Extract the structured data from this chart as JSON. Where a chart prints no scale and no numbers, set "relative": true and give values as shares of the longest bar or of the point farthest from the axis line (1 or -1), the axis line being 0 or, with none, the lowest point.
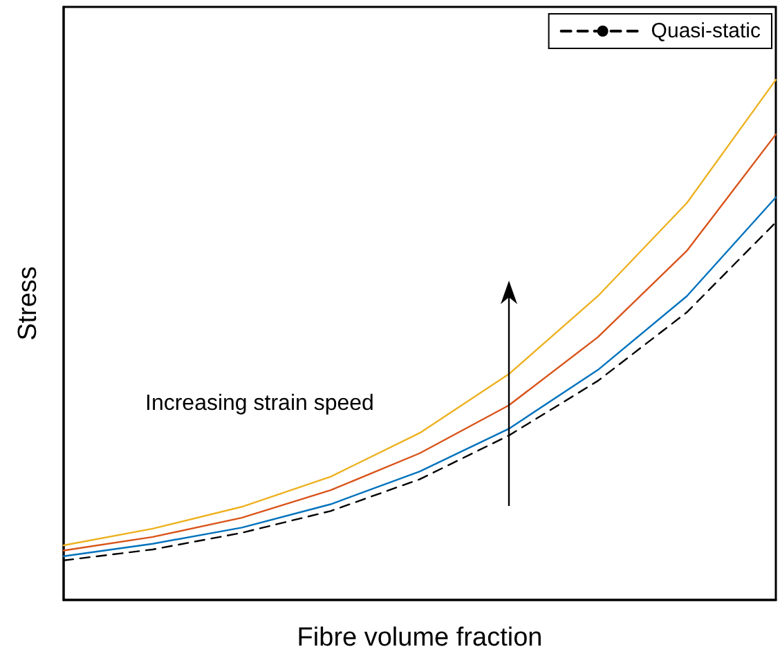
{
  "chart_data": {
    "type": "line",
    "relative": true,
    "xlabel": "Fibre volume fraction",
    "ylabel": "Stress",
    "categories": [
      null,
      null,
      null,
      null,
      null,
      null,
      null,
      null,
      null
    ],
    "series": [
      {
        "color": "#edb120",
        "values": [
          0.105,
          0.137,
          0.179,
          0.237,
          0.321,
          0.434,
          0.584,
          0.763,
          1
        ]
      },
      {
        "color": "#d95319",
        "values": [
          0.095,
          0.121,
          0.158,
          0.211,
          0.282,
          0.374,
          0.505,
          0.671,
          0.895
        ]
      },
      {
        "color": "#0072bd",
        "values": [
          0.084,
          0.108,
          0.139,
          0.184,
          0.247,
          0.329,
          0.442,
          0.584,
          0.774
        ]
      },
      {
        "name": "Quasi-static",
        "color": "#000000",
        "line_style": "dashed",
        "values": [
          0.076,
          0.097,
          0.129,
          0.171,
          0.232,
          0.316,
          0.421,
          0.553,
          0.726
        ]
      }
    ],
    "annotations": [
      "Increasing strain speed"
    ],
    "legend": "top right",
    "grid": false,
    "marker": "none"
  }
}
